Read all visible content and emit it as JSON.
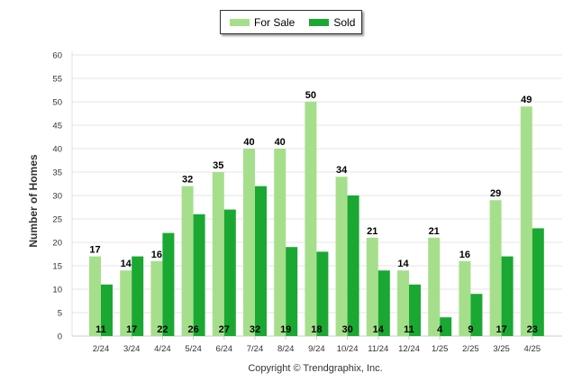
{
  "chart_data": {
    "type": "bar",
    "categories": [
      "2/24",
      "3/24",
      "4/24",
      "5/24",
      "6/24",
      "7/24",
      "8/24",
      "9/24",
      "10/24",
      "11/24",
      "12/24",
      "1/25",
      "2/25",
      "3/25",
      "4/25"
    ],
    "series": [
      {
        "name": "For Sale",
        "color": "#a6df8b",
        "values": [
          17,
          14,
          16,
          32,
          35,
          40,
          40,
          50,
          34,
          21,
          14,
          21,
          16,
          29,
          49
        ]
      },
      {
        "name": "Sold",
        "color": "#1aa832",
        "values": [
          11,
          17,
          22,
          26,
          27,
          32,
          19,
          18,
          30,
          14,
          11,
          4,
          9,
          17,
          23
        ]
      }
    ],
    "ylabel": "Number of Homes",
    "xlabel": "",
    "ylim": [
      0,
      60
    ],
    "yticks": [
      0,
      5,
      10,
      15,
      20,
      25,
      30,
      35,
      40,
      45,
      50,
      55,
      60
    ],
    "grid": true,
    "legend": "top-center"
  },
  "legend": {
    "for_sale": "For Sale",
    "sold": "Sold"
  },
  "footer": {
    "copyright": "Copyright © Trendgraphix, Inc."
  }
}
